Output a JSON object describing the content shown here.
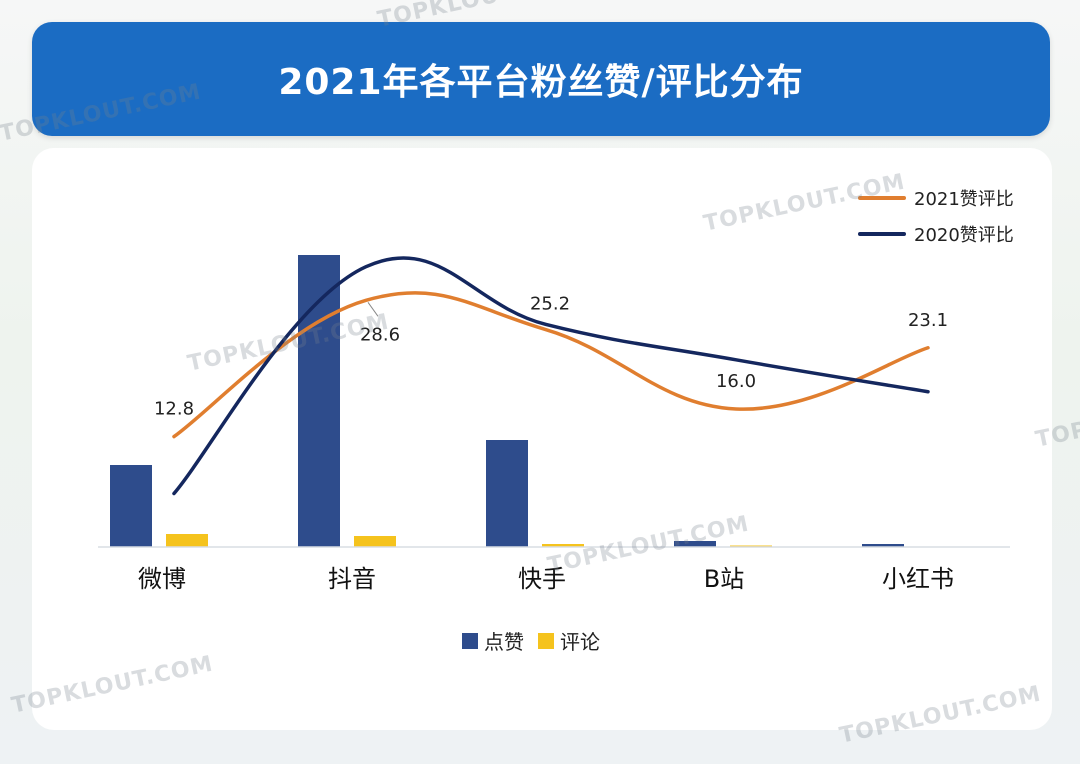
{
  "title": "2021年各平台粉丝赞/评比分布",
  "watermark_text": "TOPKLOUT.COM",
  "colors": {
    "banner": "#1b6cc3",
    "likes_bar": "#2e4c8c",
    "comments_bar": "#f5c31d",
    "line_2021": "#e07e2f",
    "line_2020": "#14275e"
  },
  "chart_data": {
    "type": "bar",
    "categories": [
      "微博",
      "抖音",
      "快手",
      "B站",
      "小红书"
    ],
    "bar_series": [
      {
        "name": "点赞",
        "values": [
          82,
          292,
          107,
          6,
          3
        ]
      },
      {
        "name": "评论",
        "values": [
          13,
          11,
          3,
          1,
          0
        ]
      }
    ],
    "line_series": [
      {
        "name": "2021赞评比",
        "values": [
          12.8,
          28.6,
          25.2,
          16.0,
          23.1
        ],
        "labels": [
          "12.8",
          "28.6",
          "25.2",
          "16.0",
          "23.1"
        ]
      },
      {
        "name": "2020赞评比",
        "values": [
          6.2,
          32.5,
          25.8,
          21.7,
          18.0
        ]
      }
    ],
    "bar_ylim": [
      0,
      300
    ],
    "line_ylim": [
      0,
      40
    ],
    "legend_lines": [
      "2021赞评比",
      "2020赞评比"
    ],
    "legend_bars": [
      "点赞",
      "评论"
    ]
  }
}
